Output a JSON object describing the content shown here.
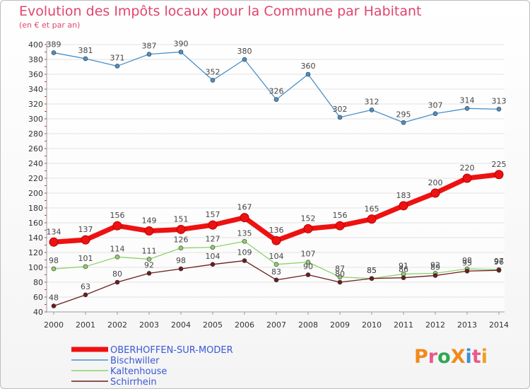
{
  "header": {
    "title": "Evolution des Impôts locaux pour la Commune par Habitant",
    "subtitle": "(en € et par an)"
  },
  "brand": {
    "text": "ProXiti",
    "letters": [
      "P",
      "r",
      "o",
      "X",
      "i",
      "t",
      "i"
    ],
    "colors": [
      "#f08a1c",
      "#e85a8a",
      "#2fa84f",
      "#f08a1c",
      "#3a8fd6",
      "#e85a8a",
      "#f0a01c"
    ]
  },
  "chart_data": {
    "type": "line",
    "title": "Evolution des Impôts locaux pour la Commune par Habitant",
    "subtitle": "(en € et par an)",
    "xlabel": "",
    "ylabel": "",
    "categories": [
      "2000",
      "2001",
      "2002",
      "2003",
      "2004",
      "2005",
      "2006",
      "2007",
      "2008",
      "2009",
      "2010",
      "2011",
      "2012",
      "2013",
      "2014"
    ],
    "ylim": [
      40,
      400
    ],
    "yticks": [
      40,
      60,
      80,
      100,
      120,
      140,
      160,
      180,
      200,
      220,
      240,
      260,
      280,
      300,
      320,
      340,
      360,
      380,
      400
    ],
    "grid": true,
    "legend_position": "bottom-left",
    "series": [
      {
        "name": "OBERHOFFEN-SUR-MODER",
        "color": "#ee1111",
        "emphasis": true,
        "values": [
          134,
          137,
          156,
          149,
          151,
          157,
          167,
          136,
          152,
          156,
          165,
          183,
          200,
          220,
          225
        ]
      },
      {
        "name": "Bischwiller",
        "color": "#4a90c8",
        "values": [
          389,
          381,
          371,
          387,
          390,
          352,
          380,
          326,
          360,
          302,
          312,
          295,
          307,
          314,
          313
        ]
      },
      {
        "name": "Kaltenhouse",
        "color": "#8fd06a",
        "values": [
          98,
          101,
          114,
          111,
          126,
          127,
          135,
          104,
          107,
          87,
          85,
          91,
          92,
          98,
          97
        ]
      },
      {
        "name": "Schirrhein",
        "color": "#6b1d1d",
        "values": [
          48,
          63,
          80,
          92,
          98,
          104,
          109,
          83,
          90,
          80,
          85,
          86,
          89,
          95,
          96
        ]
      }
    ]
  }
}
